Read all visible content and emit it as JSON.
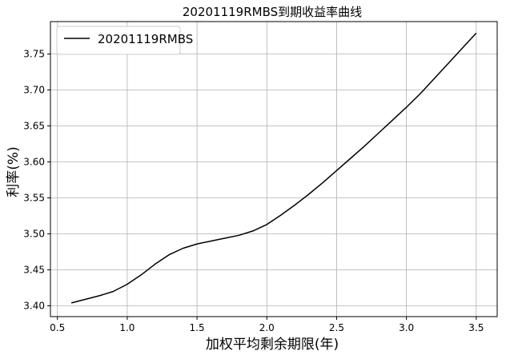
{
  "chart_data": {
    "type": "line",
    "title": "20201119RMBS到期收益率曲线",
    "xlabel": "加权平均剩余期限(年)",
    "ylabel": "利率(%)",
    "xlim": [
      0.45,
      3.65
    ],
    "ylim": [
      3.385,
      3.795
    ],
    "xticks": [
      0.5,
      1.0,
      1.5,
      2.0,
      2.5,
      3.0,
      3.5
    ],
    "xtick_labels": [
      "0.5",
      "1.0",
      "1.5",
      "2.0",
      "2.5",
      "3.0",
      "3.5"
    ],
    "yticks": [
      3.4,
      3.45,
      3.5,
      3.55,
      3.6,
      3.65,
      3.7,
      3.75
    ],
    "ytick_labels": [
      "3.40",
      "3.45",
      "3.50",
      "3.55",
      "3.60",
      "3.65",
      "3.70",
      "3.75"
    ],
    "grid": true,
    "legend_position": "top-left",
    "series": [
      {
        "name": "20201119RMBS",
        "color": "#000000",
        "x": [
          0.6,
          0.7,
          0.8,
          0.9,
          1.0,
          1.1,
          1.2,
          1.3,
          1.4,
          1.5,
          1.6,
          1.7,
          1.8,
          1.9,
          2.0,
          2.1,
          2.2,
          2.3,
          2.4,
          2.5,
          2.6,
          2.7,
          2.8,
          2.9,
          3.0,
          3.1,
          3.2,
          3.3,
          3.4,
          3.5
        ],
        "y": [
          3.404,
          3.409,
          3.414,
          3.42,
          3.43,
          3.443,
          3.458,
          3.471,
          3.48,
          3.486,
          3.49,
          3.494,
          3.498,
          3.504,
          3.513,
          3.526,
          3.54,
          3.555,
          3.571,
          3.588,
          3.605,
          3.622,
          3.64,
          3.658,
          3.676,
          3.695,
          3.716,
          3.737,
          3.758,
          3.779
        ]
      }
    ]
  }
}
